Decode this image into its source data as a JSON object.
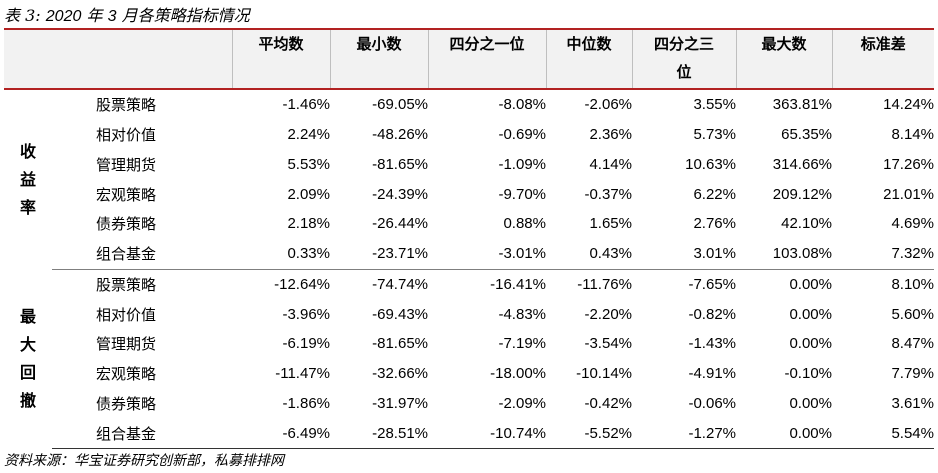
{
  "title": {
    "prefix": "表 3:",
    "year": "2020",
    "text1": "年",
    "month": "3",
    "text2": "月各策略指标情况"
  },
  "columns": [
    "平均数",
    "最小数",
    "四分之一位",
    "中位数",
    "四分之三位",
    "最大数",
    "标准差"
  ],
  "column_wrap_note": "四分之三位 displayed across two lines",
  "groups": [
    {
      "label": "收益率",
      "rows": [
        {
          "name": "股票策略",
          "values": [
            "-1.46%",
            "-69.05%",
            "-8.08%",
            "-2.06%",
            "3.55%",
            "363.81%",
            "14.24%"
          ]
        },
        {
          "name": "相对价值",
          "values": [
            "2.24%",
            "-48.26%",
            "-0.69%",
            "2.36%",
            "5.73%",
            "65.35%",
            "8.14%"
          ]
        },
        {
          "name": "管理期货",
          "values": [
            "5.53%",
            "-81.65%",
            "-1.09%",
            "4.14%",
            "10.63%",
            "314.66%",
            "17.26%"
          ]
        },
        {
          "name": "宏观策略",
          "values": [
            "2.09%",
            "-24.39%",
            "-9.70%",
            "-0.37%",
            "6.22%",
            "209.12%",
            "21.01%"
          ]
        },
        {
          "name": "债券策略",
          "values": [
            "2.18%",
            "-26.44%",
            "0.88%",
            "1.65%",
            "2.76%",
            "42.10%",
            "4.69%"
          ]
        },
        {
          "name": "组合基金",
          "values": [
            "0.33%",
            "-23.71%",
            "-3.01%",
            "0.43%",
            "3.01%",
            "103.08%",
            "7.32%"
          ]
        }
      ]
    },
    {
      "label": "最大回撤",
      "rows": [
        {
          "name": "股票策略",
          "values": [
            "-12.64%",
            "-74.74%",
            "-16.41%",
            "-11.76%",
            "-7.65%",
            "0.00%",
            "8.10%"
          ]
        },
        {
          "name": "相对价值",
          "values": [
            "-3.96%",
            "-69.43%",
            "-4.83%",
            "-2.20%",
            "-0.82%",
            "0.00%",
            "5.60%"
          ]
        },
        {
          "name": "管理期货",
          "values": [
            "-6.19%",
            "-81.65%",
            "-7.19%",
            "-3.54%",
            "-1.43%",
            "0.00%",
            "8.47%"
          ]
        },
        {
          "name": "宏观策略",
          "values": [
            "-11.47%",
            "-32.66%",
            "-18.00%",
            "-10.14%",
            "-4.91%",
            "-0.10%",
            "7.79%"
          ]
        },
        {
          "name": "债券策略",
          "values": [
            "-1.86%",
            "-31.97%",
            "-2.09%",
            "-0.42%",
            "-0.06%",
            "0.00%",
            "3.61%"
          ]
        },
        {
          "name": "组合基金",
          "values": [
            "-6.49%",
            "-28.51%",
            "-10.74%",
            "-5.52%",
            "-1.27%",
            "0.00%",
            "5.54%"
          ]
        }
      ]
    }
  ],
  "source": "资料来源：华宝证券研究创新部，私募排排网",
  "colors": {
    "accent_line": "#b22222",
    "header_bg": "#f2f2f2"
  }
}
